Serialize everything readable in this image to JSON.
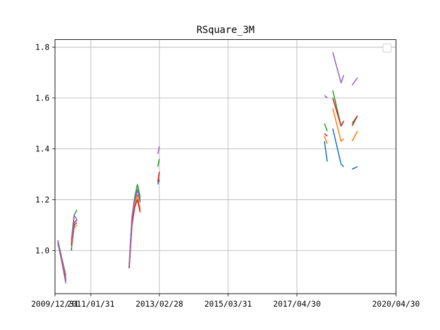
{
  "chart_data": {
    "type": "line",
    "title": "RSquare_3M",
    "xlabel": "",
    "ylabel": "",
    "x_axis": {
      "kind": "date",
      "range": [
        "2009-12-31",
        "2020-04-30"
      ],
      "ticks": [
        "2009/12/31",
        "2011/01/31",
        "2013/02/28",
        "2015/03/31",
        "2017/04/30",
        "2020/04/30"
      ]
    },
    "y_axis": {
      "range": [
        0.83,
        1.83
      ],
      "ticks": [
        "1.0",
        "1.2",
        "1.4",
        "1.6",
        "1.8"
      ]
    },
    "grid": true,
    "legend": {
      "placement": "top-right",
      "entries": []
    },
    "colors": [
      "#1f77b4",
      "#ff7f0e",
      "#2ca02c",
      "#d62728",
      "#9467bd"
    ],
    "series": [
      {
        "color": "#1f77b4",
        "segments": [
          [
            [
              "2010-01-31",
              1.04
            ],
            [
              "2010-04-30",
              0.9
            ]
          ],
          [
            [
              "2010-06-30",
              1.0
            ],
            [
              "2010-07-31",
              1.1
            ],
            [
              "2010-08-31",
              1.11
            ]
          ],
          [
            [
              "2012-03-31",
              0.93
            ],
            [
              "2012-04-30",
              1.12
            ],
            [
              "2012-05-31",
              1.19
            ],
            [
              "2012-06-30",
              1.24
            ],
            [
              "2012-07-31",
              1.19
            ]
          ],
          [
            [
              "2013-02-10",
              1.26
            ],
            [
              "2013-02-28",
              1.28
            ]
          ],
          [
            [
              "2018-02-28",
              1.43
            ],
            [
              "2018-03-31",
              1.35
            ]
          ],
          [
            [
              "2018-05-31",
              1.48
            ],
            [
              "2018-08-31",
              1.34
            ],
            [
              "2018-09-30",
              1.33
            ]
          ],
          [
            [
              "2018-12-31",
              1.32
            ],
            [
              "2019-02-28",
              1.33
            ]
          ]
        ]
      },
      {
        "color": "#ff7f0e",
        "segments": [
          [
            [
              "2010-01-31",
              1.04
            ],
            [
              "2010-04-30",
              0.89
            ]
          ],
          [
            [
              "2010-06-30",
              1.01
            ],
            [
              "2010-07-31",
              1.09
            ],
            [
              "2010-08-31",
              1.1
            ]
          ],
          [
            [
              "2012-03-31",
              0.93
            ],
            [
              "2012-04-30",
              1.1
            ],
            [
              "2012-05-31",
              1.18
            ],
            [
              "2012-06-30",
              1.22
            ],
            [
              "2012-07-31",
              1.16
            ]
          ],
          [
            [
              "2013-02-10",
              1.27
            ],
            [
              "2013-02-28",
              1.3
            ]
          ],
          [
            [
              "2018-02-28",
              1.45
            ],
            [
              "2018-03-31",
              1.42
            ]
          ],
          [
            [
              "2018-05-31",
              1.56
            ],
            [
              "2018-08-31",
              1.43
            ],
            [
              "2018-09-30",
              1.44
            ]
          ],
          [
            [
              "2018-12-31",
              1.43
            ],
            [
              "2019-02-28",
              1.47
            ]
          ]
        ]
      },
      {
        "color": "#2ca02c",
        "segments": [
          [
            [
              "2010-01-31",
              1.03
            ],
            [
              "2010-04-30",
              0.88
            ]
          ],
          [
            [
              "2010-06-30",
              1.04
            ],
            [
              "2010-07-31",
              1.14
            ],
            [
              "2010-08-31",
              1.16
            ]
          ],
          [
            [
              "2012-03-31",
              0.94
            ],
            [
              "2012-04-30",
              1.13
            ],
            [
              "2012-05-31",
              1.21
            ],
            [
              "2012-06-30",
              1.26
            ],
            [
              "2012-07-31",
              1.21
            ]
          ],
          [
            [
              "2013-02-10",
              1.33
            ],
            [
              "2013-02-28",
              1.36
            ]
          ],
          [
            [
              "2018-02-28",
              1.5
            ],
            [
              "2018-03-31",
              1.47
            ]
          ],
          [
            [
              "2018-05-31",
              1.63
            ],
            [
              "2018-08-31",
              1.49
            ],
            [
              "2018-09-30",
              1.51
            ]
          ],
          [
            [
              "2018-12-31",
              1.5
            ],
            [
              "2019-02-28",
              1.53
            ]
          ]
        ]
      },
      {
        "color": "#d62728",
        "segments": [
          [
            [
              "2010-01-31",
              1.04
            ],
            [
              "2010-04-30",
              0.88
            ]
          ],
          [
            [
              "2010-06-30",
              1.02
            ],
            [
              "2010-07-31",
              1.11
            ],
            [
              "2010-08-31",
              1.12
            ]
          ],
          [
            [
              "2012-03-31",
              0.93
            ],
            [
              "2012-04-30",
              1.1
            ],
            [
              "2012-05-31",
              1.17
            ],
            [
              "2012-06-30",
              1.2
            ],
            [
              "2012-07-31",
              1.15
            ]
          ],
          [
            [
              "2013-02-10",
              1.27
            ],
            [
              "2013-02-28",
              1.31
            ]
          ],
          [
            [
              "2018-02-28",
              1.46
            ],
            [
              "2018-03-31",
              1.45
            ]
          ],
          [
            [
              "2018-05-31",
              1.6
            ],
            [
              "2018-08-31",
              1.49
            ],
            [
              "2018-09-30",
              1.51
            ]
          ],
          [
            [
              "2018-12-31",
              1.49
            ],
            [
              "2019-02-28",
              1.53
            ]
          ]
        ]
      },
      {
        "color": "#9467bd",
        "segments": [
          [
            [
              "2010-01-31",
              1.04
            ],
            [
              "2010-04-30",
              0.87
            ]
          ],
          [
            [
              "2010-06-30",
              1.03
            ],
            [
              "2010-07-31",
              1.14
            ],
            [
              "2010-08-31",
              1.12
            ]
          ],
          [
            [
              "2012-03-31",
              0.94
            ],
            [
              "2012-04-30",
              1.13
            ],
            [
              "2012-05-31",
              1.2
            ],
            [
              "2012-06-30",
              1.24
            ],
            [
              "2012-07-31",
              1.2
            ]
          ],
          [
            [
              "2013-02-10",
              1.38
            ],
            [
              "2013-02-28",
              1.41
            ]
          ],
          [
            [
              "2018-02-28",
              1.61
            ],
            [
              "2018-03-31",
              1.6
            ]
          ],
          [
            [
              "2018-05-31",
              1.78
            ],
            [
              "2018-08-31",
              1.66
            ],
            [
              "2018-09-30",
              1.69
            ]
          ],
          [
            [
              "2018-12-31",
              1.65
            ],
            [
              "2019-02-28",
              1.68
            ]
          ]
        ]
      }
    ]
  }
}
